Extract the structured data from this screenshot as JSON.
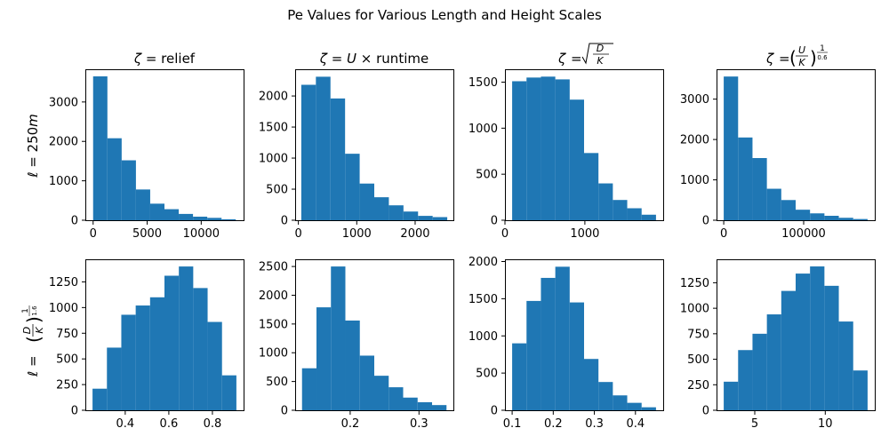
{
  "figure": {
    "suptitle": "Pe Values for Various Length and Height Scales",
    "row_labels": [
      "ℓ = 250m",
      "ℓ = (D/K)^(1/1.6)"
    ],
    "col_titles": [
      "ζ = relief",
      "ζ = U × runtime",
      "ζ = √(D/K)",
      "ζ = (U/K)^(1/0.6)"
    ],
    "bar_color": "#1f77b4"
  },
  "chart_data": [
    {
      "type": "bar",
      "subtype": "histogram",
      "row": 0,
      "col": 0,
      "title": "ζ = relief",
      "ylabel": "ℓ = 250m",
      "bin_edges": [
        0,
        1320,
        2640,
        3960,
        5280,
        6600,
        7920,
        9240,
        10560,
        11880,
        13200
      ],
      "values": [
        3650,
        2080,
        1520,
        780,
        420,
        280,
        160,
        90,
        60,
        25
      ],
      "xlim": [
        -720,
        13920
      ],
      "ylim": [
        0,
        3830
      ],
      "xticks": [
        0,
        5000,
        10000
      ],
      "xtick_labels": [
        "0",
        "5000",
        "10000"
      ],
      "yticks": [
        0,
        1000,
        2000,
        3000
      ],
      "ytick_labels": [
        "0",
        "1000",
        "2000",
        "3000"
      ]
    },
    {
      "type": "bar",
      "subtype": "histogram",
      "row": 0,
      "col": 1,
      "title": "ζ = U × runtime",
      "ylabel": "",
      "bin_edges": [
        50,
        300,
        550,
        800,
        1050,
        1300,
        1550,
        1800,
        2050,
        2300,
        2550
      ],
      "values": [
        2180,
        2310,
        1960,
        1070,
        590,
        370,
        240,
        140,
        70,
        50
      ],
      "xlim": [
        -55,
        2655
      ],
      "ylim": [
        0,
        2430
      ],
      "xticks": [
        0,
        1000,
        2000
      ],
      "xtick_labels": [
        "0",
        "1000",
        "2000"
      ],
      "yticks": [
        0,
        500,
        1000,
        1500,
        2000
      ],
      "ytick_labels": [
        "0",
        "500",
        "1000",
        "1500",
        "2000"
      ]
    },
    {
      "type": "bar",
      "subtype": "histogram",
      "row": 0,
      "col": 2,
      "title": "ζ = √(D/K)",
      "ylabel": "",
      "bin_edges": [
        90,
        270,
        450,
        630,
        810,
        990,
        1170,
        1350,
        1530,
        1710,
        1890
      ],
      "values": [
        1510,
        1550,
        1560,
        1530,
        1310,
        730,
        400,
        220,
        130,
        60
      ],
      "xlim": [
        0,
        1980
      ],
      "ylim": [
        0,
        1640
      ],
      "xticks": [
        0,
        1000
      ],
      "xtick_labels": [
        "0",
        "1000"
      ],
      "yticks": [
        0,
        500,
        1000,
        1500
      ],
      "ytick_labels": [
        "0",
        "500",
        "1000",
        "1500"
      ]
    },
    {
      "type": "bar",
      "subtype": "histogram",
      "row": 0,
      "col": 3,
      "title": "ζ = (U/K)^(1/0.6)",
      "ylabel": "",
      "bin_edges": [
        0,
        18000,
        36000,
        54000,
        72000,
        90000,
        108000,
        126000,
        144000,
        162000,
        180000
      ],
      "values": [
        3560,
        2050,
        1540,
        780,
        500,
        260,
        170,
        110,
        60,
        30
      ],
      "xlim": [
        -9000,
        189000
      ],
      "ylim": [
        0,
        3740
      ],
      "xticks": [
        0,
        100000
      ],
      "xtick_labels": [
        "0",
        "100000"
      ],
      "yticks": [
        0,
        1000,
        2000,
        3000
      ],
      "ytick_labels": [
        "0",
        "1000",
        "2000",
        "3000"
      ]
    },
    {
      "type": "bar",
      "subtype": "histogram",
      "row": 1,
      "col": 0,
      "title": "",
      "ylabel": "ℓ = (D/K)^(1/1.6)",
      "bin_edges": [
        0.25,
        0.316,
        0.382,
        0.448,
        0.514,
        0.58,
        0.646,
        0.712,
        0.778,
        0.844,
        0.91
      ],
      "values": [
        210,
        610,
        930,
        1020,
        1100,
        1310,
        1400,
        1190,
        860,
        340
      ],
      "xlim": [
        0.217,
        0.943
      ],
      "ylim": [
        0,
        1470
      ],
      "xticks": [
        0.4,
        0.6,
        0.8
      ],
      "xtick_labels": [
        "0.4",
        "0.6",
        "0.8"
      ],
      "yticks": [
        0,
        250,
        500,
        750,
        1000,
        1250
      ],
      "ytick_labels": [
        "0",
        "250",
        "500",
        "750",
        "1000",
        "1250"
      ]
    },
    {
      "type": "bar",
      "subtype": "histogram",
      "row": 1,
      "col": 1,
      "title": "",
      "ylabel": "",
      "bin_edges": [
        0.13,
        0.151,
        0.172,
        0.193,
        0.214,
        0.235,
        0.256,
        0.277,
        0.298,
        0.319,
        0.34
      ],
      "values": [
        730,
        1790,
        2500,
        1560,
        950,
        600,
        400,
        220,
        140,
        90
      ],
      "xlim": [
        0.12,
        0.35
      ],
      "ylim": [
        0,
        2625
      ],
      "xticks": [
        0.2,
        0.3
      ],
      "xtick_labels": [
        "0.2",
        "0.3"
      ],
      "yticks": [
        0,
        500,
        1000,
        1500,
        2000,
        2500
      ],
      "ytick_labels": [
        "0",
        "500",
        "1000",
        "1500",
        "2000",
        "2500"
      ]
    },
    {
      "type": "bar",
      "subtype": "histogram",
      "row": 1,
      "col": 2,
      "title": "",
      "ylabel": "",
      "bin_edges": [
        0.1,
        0.135,
        0.17,
        0.205,
        0.24,
        0.275,
        0.31,
        0.345,
        0.38,
        0.415,
        0.45
      ],
      "values": [
        900,
        1470,
        1780,
        1930,
        1450,
        690,
        380,
        200,
        100,
        40
      ],
      "xlim": [
        0.0825,
        0.4675
      ],
      "ylim": [
        0,
        2030
      ],
      "xticks": [
        0.1,
        0.2,
        0.3,
        0.4
      ],
      "xtick_labels": [
        "0.1",
        "0.2",
        "0.3",
        "0.4"
      ],
      "yticks": [
        0,
        500,
        1000,
        1500,
        2000
      ],
      "ytick_labels": [
        "0",
        "500",
        "1000",
        "1500",
        "2000"
      ]
    },
    {
      "type": "bar",
      "subtype": "histogram",
      "row": 1,
      "col": 3,
      "title": "",
      "ylabel": "",
      "bin_edges": [
        2.8,
        3.82,
        4.84,
        5.86,
        6.88,
        7.9,
        8.92,
        9.94,
        10.96,
        11.98,
        13.0
      ],
      "values": [
        280,
        590,
        750,
        940,
        1170,
        1340,
        1410,
        1220,
        870,
        390
      ],
      "xlim": [
        2.29,
        13.51
      ],
      "ylim": [
        0,
        1480
      ],
      "xticks": [
        5,
        10
      ],
      "xtick_labels": [
        "5",
        "10"
      ],
      "yticks": [
        0,
        250,
        500,
        750,
        1000,
        1250
      ],
      "ytick_labels": [
        "0",
        "250",
        "500",
        "750",
        "1000",
        "1250"
      ]
    }
  ]
}
